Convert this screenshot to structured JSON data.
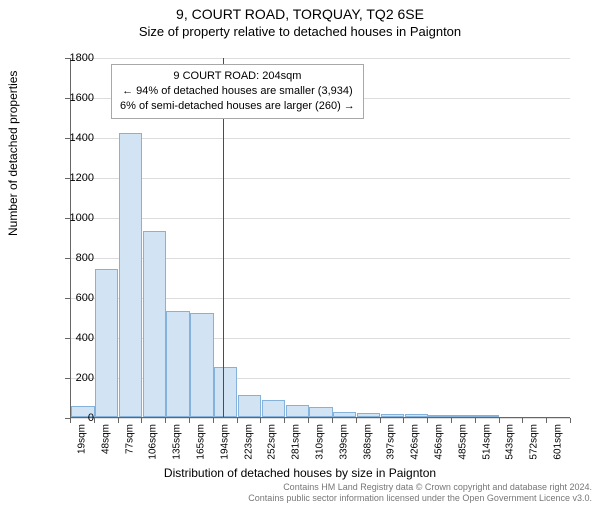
{
  "header": {
    "title1": "9, COURT ROAD, TORQUAY, TQ2 6SE",
    "title2": "Size of property relative to detached houses in Paignton"
  },
  "chart": {
    "type": "histogram",
    "background_color": "#ffffff",
    "grid_color": "#dddddd",
    "axis_color": "#666666",
    "bar_fill": "#d2e4f4",
    "bar_stroke": "#85b2da",
    "ylim": [
      0,
      1800
    ],
    "yticks": [
      0,
      200,
      400,
      600,
      800,
      1000,
      1200,
      1400,
      1600,
      1800
    ],
    "xlim_label_start": 19,
    "xlim_label_step": 29,
    "bar_count": 21,
    "xtick_labels": [
      "19sqm",
      "48sqm",
      "77sqm",
      "106sqm",
      "135sqm",
      "165sqm",
      "194sqm",
      "223sqm",
      "252sqm",
      "281sqm",
      "310sqm",
      "339sqm",
      "368sqm",
      "397sqm",
      "426sqm",
      "456sqm",
      "485sqm",
      "514sqm",
      "543sqm",
      "572sqm",
      "601sqm"
    ],
    "values": [
      55,
      740,
      1420,
      930,
      530,
      520,
      250,
      110,
      85,
      60,
      50,
      25,
      20,
      15,
      15,
      10,
      8,
      8,
      0,
      0,
      0
    ],
    "reference_line": {
      "position_sqm": 204,
      "color": "#ff0000"
    },
    "y_axis_label": "Number of detached properties",
    "x_axis_label": "Distribution of detached houses by size in Paignton"
  },
  "legend": {
    "line1": "9 COURT ROAD: 204sqm",
    "line2": "← 94% of detached houses are smaller (3,934)",
    "line3": "6% of semi-detached houses are larger (260) →"
  },
  "footer": {
    "line1": "Contains HM Land Registry data © Crown copyright and database right 2024.",
    "line2": "Contains public sector information licensed under the Open Government Licence v3.0."
  }
}
